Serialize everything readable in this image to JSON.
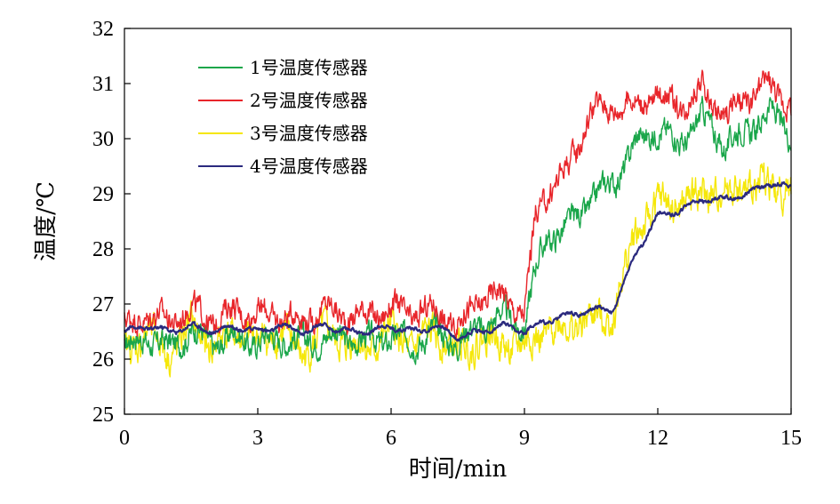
{
  "chart_data": {
    "type": "line",
    "title": "",
    "xlabel": "时间/min",
    "ylabel": "温度/℃",
    "xlim": [
      0,
      15
    ],
    "ylim": [
      25,
      32
    ],
    "xticks": [
      0,
      3,
      6,
      9,
      12,
      15
    ],
    "yticks": [
      25,
      26,
      27,
      28,
      29,
      30,
      31,
      32
    ],
    "grid": false,
    "legend_position": "top-left",
    "x": [
      0,
      0.5,
      1,
      1.5,
      2,
      2.5,
      3,
      3.5,
      4,
      4.5,
      5,
      5.5,
      6,
      6.5,
      7,
      7.5,
      8,
      8.5,
      9,
      9.25,
      9.5,
      10,
      10.5,
      11,
      11.5,
      12,
      12.5,
      13,
      13.5,
      14,
      14.5,
      15
    ],
    "series": [
      {
        "name": "1号温度传感器",
        "color": "#1aa64a",
        "values": [
          26.2,
          26.4,
          26.2,
          26.5,
          26.3,
          26.4,
          26.3,
          26.4,
          26.3,
          26.4,
          26.4,
          26.3,
          26.4,
          26.3,
          26.5,
          26.3,
          26.6,
          26.8,
          26.6,
          27.6,
          28.2,
          28.4,
          28.9,
          29.2,
          29.9,
          30.2,
          29.9,
          30.4,
          29.9,
          30.1,
          30.5,
          30.1
        ]
      },
      {
        "name": "2号温度传感器",
        "color": "#e8252a",
        "values": [
          26.6,
          26.8,
          26.7,
          26.9,
          26.7,
          26.9,
          26.8,
          26.8,
          26.7,
          26.9,
          26.8,
          26.8,
          26.9,
          26.8,
          26.9,
          26.6,
          27.1,
          27.2,
          26.8,
          28.6,
          29.0,
          29.5,
          30.5,
          30.6,
          30.6,
          30.8,
          30.6,
          30.9,
          30.4,
          30.7,
          31.0,
          30.6
        ]
      },
      {
        "name": "3号温度传感器",
        "color": "#f5e70a",
        "values": [
          26.1,
          26.5,
          26.1,
          26.6,
          26.2,
          26.5,
          26.3,
          26.5,
          26.1,
          26.5,
          26.3,
          26.2,
          26.5,
          26.2,
          26.5,
          26.1,
          26.4,
          26.3,
          26.2,
          26.4,
          26.5,
          26.6,
          26.7,
          26.8,
          28.3,
          28.8,
          28.8,
          29.0,
          29.0,
          29.1,
          29.2,
          29.0
        ]
      },
      {
        "name": "4号温度传感器",
        "color": "#2b2a7e",
        "values": [
          26.5,
          26.6,
          26.5,
          26.6,
          26.5,
          26.6,
          26.5,
          26.6,
          26.5,
          26.6,
          26.5,
          26.5,
          26.6,
          26.5,
          26.6,
          26.4,
          26.5,
          26.6,
          26.5,
          26.6,
          26.7,
          26.8,
          26.9,
          26.9,
          27.9,
          28.6,
          28.7,
          28.9,
          28.9,
          29.0,
          29.2,
          29.1
        ]
      }
    ]
  }
}
